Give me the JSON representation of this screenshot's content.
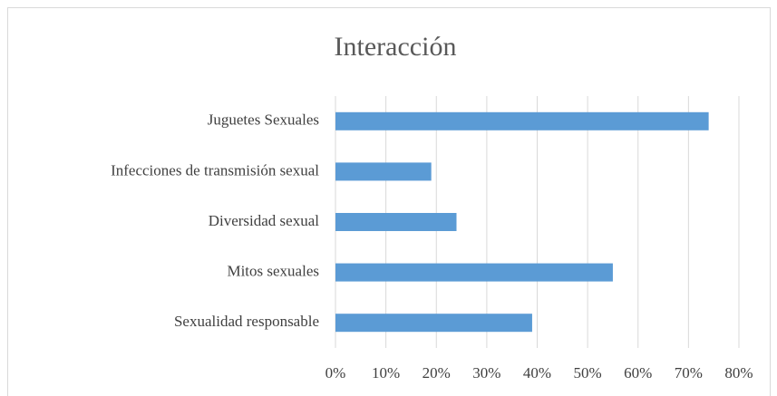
{
  "chart_data": {
    "type": "bar",
    "orientation": "horizontal",
    "title": "Interacción",
    "categories": [
      "Juguetes Sexuales",
      "Infecciones de transmisión sexual",
      "Diversidad sexual",
      "Mitos sexuales",
      "Sexualidad responsable"
    ],
    "values": [
      74,
      19,
      24,
      55,
      39
    ],
    "color": "#5b9bd5",
    "xlim": [
      0,
      80
    ],
    "xticks": [
      {
        "value": 0,
        "label": "0%"
      },
      {
        "value": 10,
        "label": "10%"
      },
      {
        "value": 20,
        "label": "20%"
      },
      {
        "value": 30,
        "label": "30%"
      },
      {
        "value": 40,
        "label": "40%"
      },
      {
        "value": 50,
        "label": "50%"
      },
      {
        "value": 60,
        "label": "60%"
      },
      {
        "value": 70,
        "label": "70%"
      },
      {
        "value": 80,
        "label": "80%"
      }
    ],
    "grid": true
  }
}
